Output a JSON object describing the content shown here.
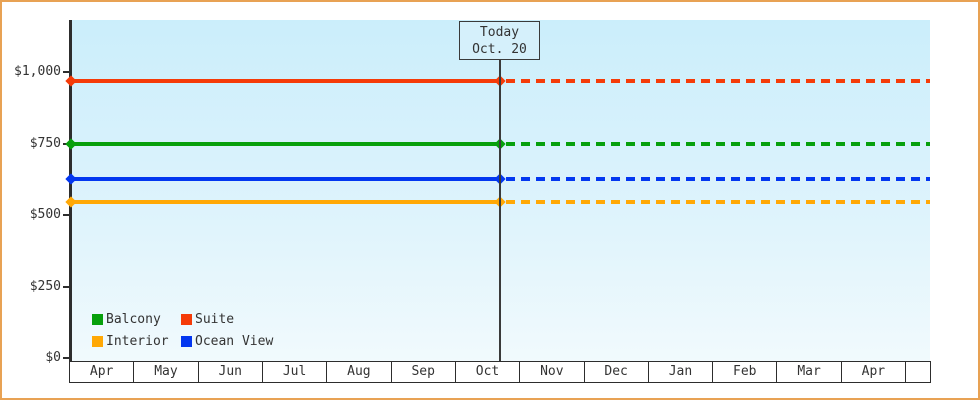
{
  "chart_data": {
    "type": "line",
    "description": "Cruise cabin price history: flat price lines per cabin category, solid up to today (Oct. 20), dotted projection afterwards",
    "x_categories": [
      "Apr",
      "May",
      "Jun",
      "Jul",
      "Aug",
      "Sep",
      "Oct",
      "Nov",
      "Dec",
      "Jan",
      "Feb",
      "Mar",
      "Apr"
    ],
    "today": {
      "label": "Today",
      "date": "Oct. 20",
      "x_category": "Oct"
    },
    "y_axis": {
      "tick_labels": [
        "$1,000",
        "$750",
        "$500",
        "$250",
        "$0"
      ],
      "tick_values": [
        1000,
        750,
        500,
        250,
        0
      ],
      "ylim": [
        0,
        1000
      ],
      "grid": false
    },
    "series": [
      {
        "name": "Suite",
        "color": "#f53b08",
        "price": 970,
        "solid_until": "Oct. 20",
        "dashed_after_today": true
      },
      {
        "name": "Balcony",
        "color": "#07a00c",
        "price": 750,
        "solid_until": "Oct. 20",
        "dashed_after_today": true
      },
      {
        "name": "Ocean View",
        "color": "#0337f0",
        "price": 625,
        "solid_until": "Oct. 20",
        "dashed_after_today": true
      },
      {
        "name": "Interior",
        "color": "#ffa805",
        "price": 545,
        "solid_until": "Oct. 20",
        "dashed_after_today": true
      }
    ],
    "legend": {
      "position": "bottom-left",
      "items": [
        {
          "label": "Balcony",
          "color": "#07a00c"
        },
        {
          "label": "Suite",
          "color": "#f53b08"
        },
        {
          "label": "Interior",
          "color": "#ffa805"
        },
        {
          "label": "Ocean View",
          "color": "#0337f0"
        }
      ]
    }
  },
  "frame": {
    "border_color": "#e8a254"
  }
}
